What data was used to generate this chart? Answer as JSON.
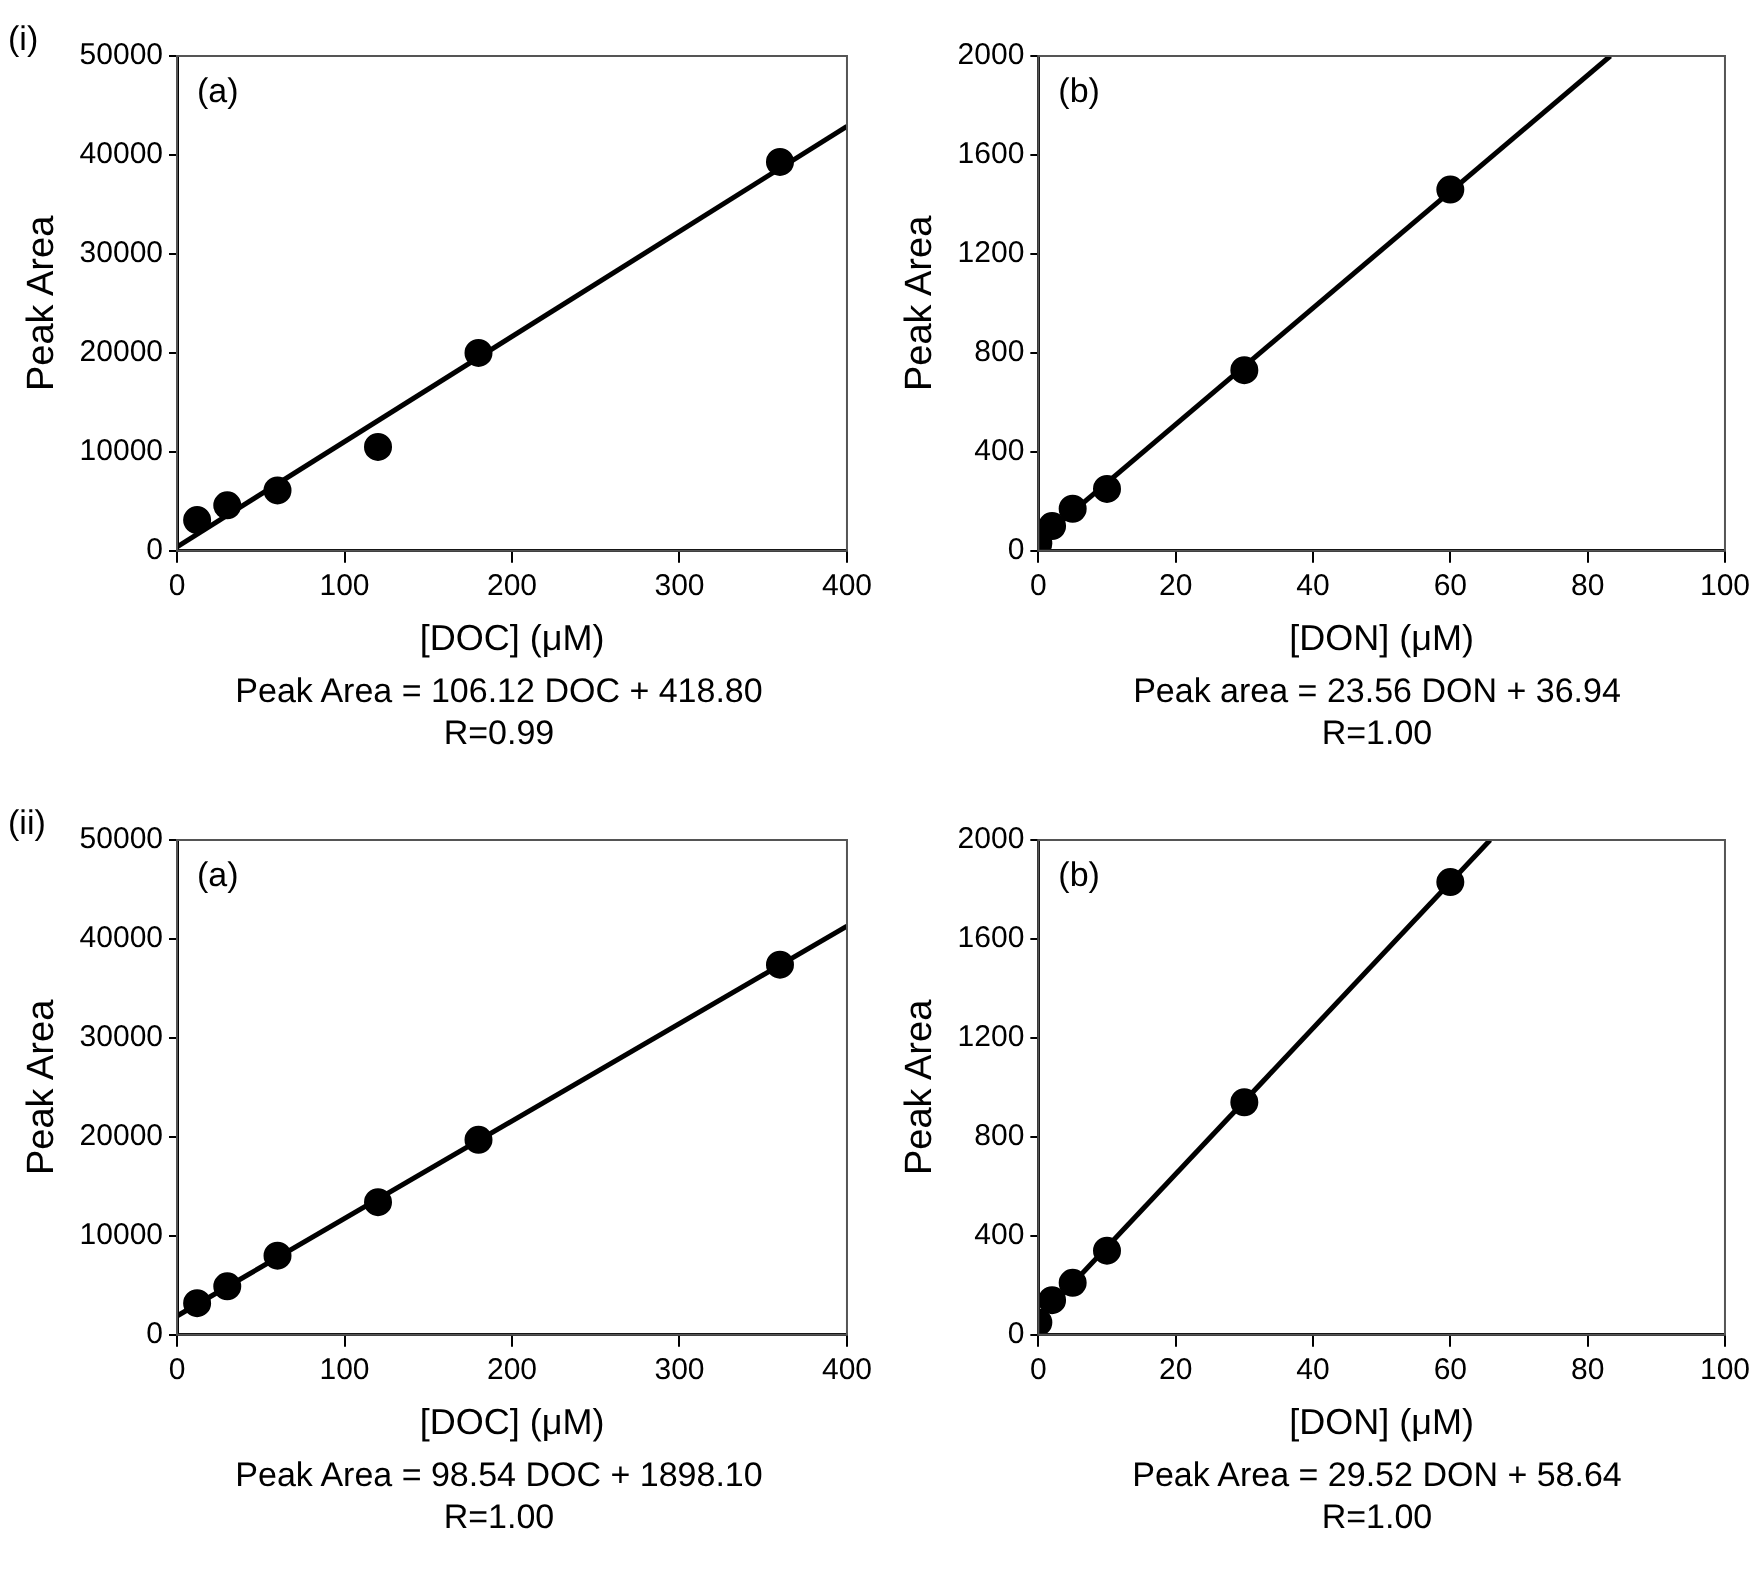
{
  "chart_data": [
    {
      "type": "scatter",
      "xlabel": "[DOC] (μM)",
      "ylabel": "Peak Area",
      "annotations": [
        "(i)",
        "(a)",
        "Peak Area = 106.12 DOC + 418.80",
        "R=0.99"
      ],
      "xlim": [
        0,
        400
      ],
      "xticks": [
        0,
        100,
        200,
        300,
        400
      ],
      "ylim": [
        0,
        50000
      ],
      "yticks": [
        0,
        10000,
        20000,
        30000,
        40000,
        50000
      ],
      "grid": false,
      "legend": false,
      "series": [
        {
          "type": "scatter",
          "marker": "circle",
          "color": "#000000",
          "x": [
            12,
            30,
            60,
            120,
            180,
            360
          ],
          "values": [
            3100,
            4600,
            6100,
            10500,
            20000,
            39300
          ]
        },
        {
          "type": "line",
          "marker": "none",
          "color": "#000000",
          "x": [
            0,
            400
          ],
          "values": [
            400,
            42900
          ]
        }
      ]
    },
    {
      "type": "scatter",
      "xlabel": "[DON] (μM)",
      "ylabel": "Peak Area",
      "annotations": [
        "(b)",
        "Peak area = 23.56 DON + 36.94",
        "R=1.00"
      ],
      "xlim": [
        0,
        100
      ],
      "xticks": [
        0,
        20,
        40,
        60,
        80,
        100
      ],
      "ylim": [
        0,
        2000
      ],
      "yticks": [
        0,
        400,
        800,
        1200,
        1600,
        2000
      ],
      "grid": false,
      "legend": false,
      "series": [
        {
          "type": "scatter",
          "marker": "circle",
          "color": "#000000",
          "x": [
            0,
            2,
            5,
            10,
            30,
            60
          ],
          "values": [
            30,
            100,
            170,
            250,
            730,
            1460
          ]
        },
        {
          "type": "line",
          "marker": "none",
          "color": "#000000",
          "x": [
            0,
            83.3
          ],
          "values": [
            40,
            2000
          ]
        }
      ]
    },
    {
      "type": "scatter",
      "xlabel": "[DOC] (μM)",
      "ylabel": "Peak Area",
      "annotations": [
        "(ii)",
        "(a)",
        "Peak Area = 98.54 DOC + 1898.10",
        "R=1.00"
      ],
      "xlim": [
        0,
        400
      ],
      "xticks": [
        0,
        100,
        200,
        300,
        400
      ],
      "ylim": [
        0,
        50000
      ],
      "yticks": [
        0,
        10000,
        20000,
        30000,
        40000,
        50000
      ],
      "grid": false,
      "legend": false,
      "series": [
        {
          "type": "scatter",
          "marker": "circle",
          "color": "#000000",
          "x": [
            12,
            30,
            60,
            120,
            180,
            360
          ],
          "values": [
            3200,
            4900,
            8000,
            13400,
            19700,
            37400
          ]
        },
        {
          "type": "line",
          "marker": "none",
          "color": "#000000",
          "x": [
            0,
            400
          ],
          "values": [
            1900,
            41300
          ]
        }
      ]
    },
    {
      "type": "scatter",
      "xlabel": "[DON] (μM)",
      "ylabel": "Peak Area",
      "annotations": [
        "(b)",
        "Peak Area = 29.52 DON + 58.64",
        "R=1.00"
      ],
      "xlim": [
        0,
        100
      ],
      "xticks": [
        0,
        20,
        40,
        60,
        80,
        100
      ],
      "ylim": [
        0,
        2000
      ],
      "yticks": [
        0,
        400,
        800,
        1200,
        1600,
        2000
      ],
      "grid": false,
      "legend": false,
      "series": [
        {
          "type": "scatter",
          "marker": "circle",
          "color": "#000000",
          "x": [
            0,
            2,
            5,
            10,
            30,
            60
          ],
          "values": [
            50,
            140,
            210,
            340,
            940,
            1830
          ]
        },
        {
          "type": "line",
          "marker": "none",
          "color": "#000000",
          "x": [
            0,
            65.8
          ],
          "values": [
            60,
            2000
          ]
        }
      ]
    }
  ]
}
